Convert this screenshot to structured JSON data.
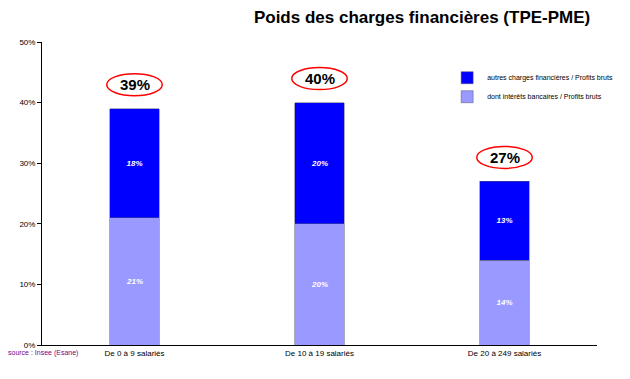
{
  "chart_data": {
    "type": "bar",
    "title": "Poids des charges financières (TPE-PME)",
    "source": "source : Insee (Esane)",
    "categories": [
      "De 0 à 9 salariés",
      "De 10 à 19 salariés",
      "De 20 à 249 salariés"
    ],
    "series": [
      {
        "name": "dont intérêts bancaires / Profits bruts",
        "color": "#9999ff",
        "values": [
          21,
          20,
          14
        ],
        "value_labels": [
          "21%",
          "20%",
          "14%"
        ]
      },
      {
        "name": "autres charges financières / Profits bruts",
        "color": "#0000ff",
        "values": [
          18,
          20,
          13
        ],
        "value_labels": [
          "18%",
          "20%",
          "13%"
        ]
      }
    ],
    "annotations": [
      {
        "x": "De 0 à 9 salariés",
        "y": 39,
        "text": "39%"
      },
      {
        "x": "De 10 à 19 salariés",
        "y": 40,
        "text": "40%"
      },
      {
        "x": "De 20 à 249 salariés",
        "y": 27,
        "text": "27%"
      }
    ],
    "ylim": [
      0,
      50
    ],
    "yticks": [
      {
        "value": 0,
        "label": "0%"
      },
      {
        "value": 10,
        "label": "10%"
      },
      {
        "value": 20,
        "label": "20%"
      },
      {
        "value": 30,
        "label": "30%"
      },
      {
        "value": 40,
        "label": "40%"
      },
      {
        "value": 50,
        "label": "50%"
      }
    ],
    "stacked": true,
    "data_labels": true,
    "grid": false,
    "legend": "upper right"
  }
}
